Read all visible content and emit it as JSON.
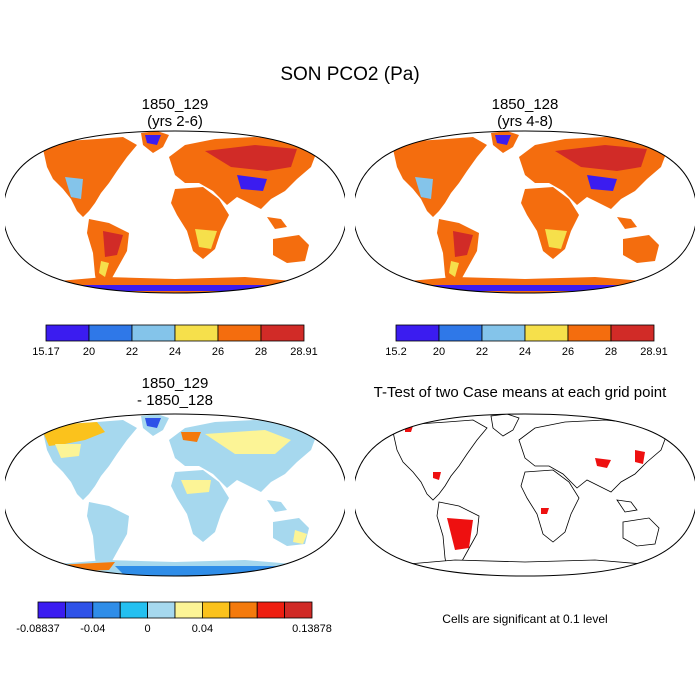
{
  "title": "SON PCO2 (Pa)",
  "panels": {
    "p1": {
      "title_line1": "1850_129",
      "title_line2": "(yrs 2-6)"
    },
    "p2": {
      "title_line1": "1850_128",
      "title_line2": "(yrs 4-8)"
    },
    "p3": {
      "title_line1": "1850_129",
      "title_line2": "- 1850_128"
    },
    "p4": {
      "title": "T-Test of two Case means at each grid point",
      "note": "Cells are significant at 0.1 level"
    }
  },
  "colorbars": {
    "cb1": {
      "colors": [
        "#3b1cf0",
        "#2f78e8",
        "#84c4ea",
        "#f6e04b",
        "#f46d0e",
        "#d12b27"
      ],
      "labels": [
        "15.17",
        "20",
        "22",
        "24",
        "26",
        "28",
        "28.91"
      ]
    },
    "cb2": {
      "colors": [
        "#3b1cf0",
        "#2f78e8",
        "#84c4ea",
        "#f6e04b",
        "#f46d0e",
        "#d12b27"
      ],
      "labels": [
        "15.2",
        "20",
        "22",
        "24",
        "26",
        "28",
        "28.91"
      ]
    },
    "cb3": {
      "colors": [
        "#3b1cf0",
        "#2e52e8",
        "#2f8de8",
        "#24c0f0",
        "#a6d8ee",
        "#fcf496",
        "#fbc21c",
        "#f47a0c",
        "#ee1e10",
        "#d02a26"
      ],
      "labels": [
        "-0.08837",
        "",
        "-0.04",
        "",
        "0",
        "",
        "0.04",
        "",
        "",
        "",
        "0.13878"
      ]
    }
  },
  "map_colors": {
    "land_base_abs": "#f46d0e",
    "land_high_abs": "#d12b27",
    "land_low_abs": "#f6e04b",
    "land_base_diff": "#a6d8ee",
    "land_pos_diff": "#fcf496",
    "sig_fill": "#ee1010"
  }
}
